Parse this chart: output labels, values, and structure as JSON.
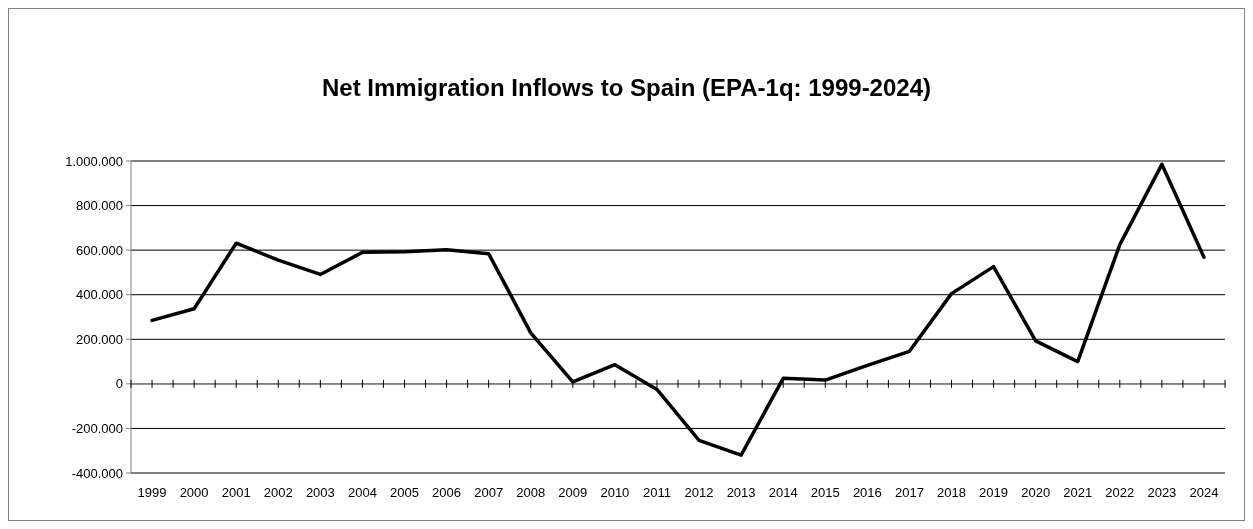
{
  "chart_data": {
    "type": "line",
    "title": "Net Immigration Inflows to Spain (EPA-1q: 1999-2024)",
    "categories": [
      "1999",
      "2000",
      "2001",
      "2002",
      "2003",
      "2004",
      "2005",
      "2006",
      "2007",
      "2008",
      "2009",
      "2010",
      "2011",
      "2012",
      "2013",
      "2014",
      "2015",
      "2016",
      "2017",
      "2018",
      "2019",
      "2020",
      "2021",
      "2022",
      "2023",
      "2024"
    ],
    "series": [
      {
        "color": "#000000",
        "values": [
          285000,
          337000,
          631000,
          555000,
          491000,
          590000,
          593000,
          602000,
          584000,
          229000,
          9000,
          86000,
          -25000,
          -254000,
          -320000,
          25000,
          17000,
          83000,
          146000,
          405000,
          526000,
          193000,
          100000,
          625000,
          985000,
          568000
        ]
      }
    ],
    "ylim": [
      -400000,
      1000000
    ],
    "yticks": [
      {
        "value": -400000,
        "label": "-400.000"
      },
      {
        "value": -200000,
        "label": "-200.000"
      },
      0,
      {
        "value": 200000,
        "label": "200.000"
      },
      {
        "value": 400000,
        "label": "400.000"
      },
      {
        "value": 600000,
        "label": "600.000"
      },
      {
        "value": 800000,
        "label": "800.000"
      },
      {
        "value": 1000000,
        "label": "1.000.000"
      }
    ],
    "grid": "y",
    "marker": "none",
    "line_style": "solid"
  }
}
